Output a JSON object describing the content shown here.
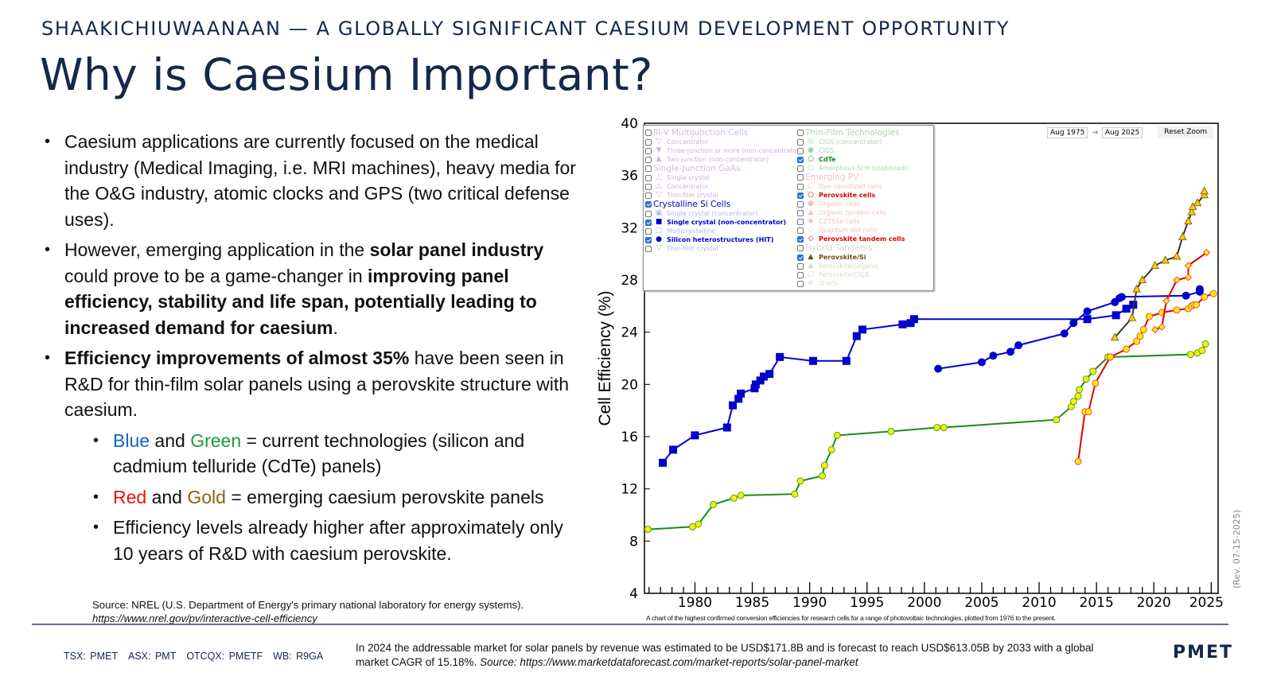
{
  "header": {
    "kicker": "SHAAKICHIUWAANAAN — A GLOBALLY SIGNIFICANT CAESIUM DEVELOPMENT OPPORTUNITY",
    "title": "Why is Caesium Important?"
  },
  "bullets": {
    "b1": "Caesium applications are currently focused on the medical industry (Medical Imaging, i.e. MRI machines), heavy media for the O&G industry, atomic clocks and GPS (two critical defense uses).",
    "b2_a": "However, emerging application in the ",
    "b2_b": "solar panel industry",
    "b2_c": " could prove to be a game-changer in ",
    "b2_d": "improving panel efficiency, stability and life span, potentially leading to increased demand for caesium",
    "b2_e": ".",
    "b3_a": "Efficiency improvements of almost 35%",
    "b3_b": " have been seen in R&D for thin-film solar panels using a perovskite structure with caesium.",
    "s1_blue": "Blue",
    "s1_and": " and ",
    "s1_green": "Green",
    "s1_rest": " = current technologies (silicon and cadmium telluride (CdTe) panels)",
    "s2_red": "Red",
    "s2_and": " and ",
    "s2_gold": "Gold",
    "s2_rest": " = emerging caesium perovskite panels",
    "s3": "Efficiency levels already higher after approximately only 10 years of R&D with caesium perovskite."
  },
  "source": {
    "text": "Source: NREL (U.S. Department of Energy's primary national laboratory for energy systems).",
    "url": "https://www.nrel.gov/pv/interactive-cell-efficiency"
  },
  "footer": {
    "tickers": [
      "TSX: PMET",
      "ASX: PMT",
      "OTCQX: PMETF",
      "WB: R9GA"
    ],
    "market_text": "In 2024 the addressable market for solar panels by revenue was estimated to be  USD$171.8B and is forecast to reach USD$613.05B by 2033 with a global market CAGR of 15.18%. ",
    "market_source_label": "Source:  https://www.marketdataforecast.com/market-reports/solar-panel-market",
    "logo": "PMET"
  },
  "colors": {
    "navy": "#14284b",
    "crystalline_si": "#0000cc",
    "cdte_line": "#1a8a1a",
    "perovskite_line": "#dd0000",
    "perovskite_si_line": "#333333",
    "marker_fill": "#ffee00"
  },
  "chart_controls": {
    "date_from": "Aug 1975",
    "arrow": "→",
    "date_to": "Aug 2025",
    "reset_zoom": "Reset Zoom",
    "caption": "A chart of the highest confirmed conversion efficiencies for research cells for a range of photovoltaic technologies, plotted from 1976 to the present.",
    "revision": "(Rev. 07-15-2025)"
  },
  "legend": {
    "left": [
      {
        "label": "III-V Multijunction Cells",
        "header": true,
        "checked": false,
        "color": "#d8b8e0",
        "sym": ""
      },
      {
        "label": "Concentrator",
        "checked": false,
        "color": "#d0b0e0",
        "sym": "▽"
      },
      {
        "label": "Three-junction or more (non-concentrator)",
        "checked": false,
        "color": "#d0b0e0",
        "sym": "▼"
      },
      {
        "label": "Two-junction (non-concentrator)",
        "checked": false,
        "color": "#d0b0e0",
        "sym": "▲"
      },
      {
        "label": "Single-Junction GaAs",
        "header": true,
        "checked": false,
        "color": "#d8b8e0",
        "sym": ""
      },
      {
        "label": "Single crystal",
        "checked": false,
        "color": "#d0b0e0",
        "sym": "△"
      },
      {
        "label": "Concentrator",
        "checked": false,
        "color": "#d0b0e0",
        "sym": "△"
      },
      {
        "label": "Thin-film crystal",
        "checked": false,
        "color": "#d0b0e0",
        "sym": "▽"
      },
      {
        "label": "Crystalline Si Cells",
        "header": true,
        "checked": true,
        "color": "#0000cc",
        "sym": ""
      },
      {
        "label": "Single crystal (concentrator)",
        "checked": false,
        "color": "#b0b8ee",
        "sym": "▣"
      },
      {
        "label": "Single crystal (non-concentrator)",
        "checked": true,
        "color": "#0000cc",
        "sym": "■"
      },
      {
        "label": "Multicrystalline",
        "checked": false,
        "color": "#b0b8ee",
        "sym": "□"
      },
      {
        "label": "Silicon heterostructures (HIT)",
        "checked": true,
        "color": "#0000cc",
        "sym": "●"
      },
      {
        "label": "Thin-film crystal",
        "checked": false,
        "color": "#b0b8ee",
        "sym": "▽"
      }
    ],
    "right": [
      {
        "label": "Thin-Film Technologies",
        "header": true,
        "checked": false,
        "color": "#a8d8a8",
        "sym": ""
      },
      {
        "label": "CIGS (concentrator)",
        "checked": false,
        "color": "#a8d8a8",
        "sym": "◎"
      },
      {
        "label": "CIGS",
        "checked": false,
        "color": "#a8d8a8",
        "sym": "●"
      },
      {
        "label": "CdTe",
        "checked": true,
        "color": "#1a8a1a",
        "sym": "○"
      },
      {
        "label": "Amorphous Si:H (stabilized)",
        "checked": false,
        "color": "#a8d8a8",
        "sym": "○"
      },
      {
        "label": "Emerging PV",
        "header": true,
        "checked": false,
        "color": "#f5c0b8",
        "sym": ""
      },
      {
        "label": "Dye-sensitized cells",
        "checked": false,
        "color": "#f5c0b8",
        "sym": "○"
      },
      {
        "label": "Perovskite cells",
        "checked": true,
        "color": "#dd0000",
        "sym": "○"
      },
      {
        "label": "Organic cells",
        "checked": false,
        "color": "#f5c0b8",
        "sym": "●"
      },
      {
        "label": "Organic tandem cells",
        "checked": false,
        "color": "#f5c0b8",
        "sym": "▲"
      },
      {
        "label": "CZTSSe cells",
        "checked": false,
        "color": "#f5c0b8",
        "sym": "◆"
      },
      {
        "label": "Quantum dot cells",
        "checked": false,
        "color": "#f5c0b8",
        "sym": "◇"
      },
      {
        "label": "Perovskite tandem cells",
        "checked": true,
        "color": "#dd0000",
        "sym": "◇"
      },
      {
        "label": "Hybrid Tandems",
        "header": true,
        "checked": false,
        "color": "#ddd8c8",
        "sym": ""
      },
      {
        "label": "Perovskite/Si",
        "checked": true,
        "color": "#6b4a10",
        "sym": "▲"
      },
      {
        "label": "Perovskite/Organic",
        "checked": false,
        "color": "#ddd8c8",
        "sym": "▲"
      },
      {
        "label": "Perovskite/CIGS",
        "checked": false,
        "color": "#ddd8c8",
        "sym": "□"
      },
      {
        "label": "III-V/Si",
        "checked": false,
        "color": "#ddd8c8",
        "sym": "≡"
      }
    ]
  },
  "chart_data": {
    "type": "line",
    "title": "",
    "xlabel": "",
    "ylabel": "Cell Efficiency (%)",
    "xlim": [
      1975.6,
      2025.6
    ],
    "ylim": [
      4,
      40
    ],
    "xticks": [
      1980,
      1985,
      1990,
      1995,
      2000,
      2005,
      2010,
      2015,
      2020,
      2025
    ],
    "yticks": [
      4,
      8,
      12,
      16,
      20,
      24,
      28,
      32,
      36,
      40
    ],
    "grid": false,
    "legend_position": "top-left",
    "series": [
      {
        "name": "Single crystal (non-concentrator)",
        "line": "#0000cc",
        "marker": "square",
        "fill": "#0000cc",
        "stroke": "#0000cc",
        "x": [
          1977.2,
          1978.1,
          1980.0,
          1982.8,
          1983.3,
          1983.8,
          1984.0,
          1985.2,
          1985.3,
          1985.7,
          1986.0,
          1986.5,
          1987.4,
          1990.3,
          1993.2,
          1994.1,
          1994.6,
          1998.1,
          1998.8,
          1999.1,
          2014.2,
          2016.7,
          2017.6,
          2018.2
        ],
        "y": [
          14.0,
          15.0,
          16.1,
          16.7,
          18.4,
          18.9,
          19.3,
          19.7,
          20.0,
          20.3,
          20.6,
          20.8,
          22.1,
          21.8,
          21.8,
          23.7,
          24.2,
          24.6,
          24.7,
          25.0,
          25.0,
          25.3,
          25.8,
          26.1
        ]
      },
      {
        "name": "Silicon heterostructures (HIT)",
        "line": "#0000cc",
        "marker": "circle",
        "fill": "#0000cc",
        "stroke": "#0000cc",
        "x": [
          2001.2,
          2005.0,
          2006.0,
          2007.5,
          2008.2,
          2012.2,
          2013.0,
          2014.2,
          2016.6,
          2017.0,
          2017.2,
          2022.8,
          2024.0,
          2024.0
        ],
        "y": [
          21.2,
          21.7,
          22.2,
          22.5,
          23.0,
          23.9,
          24.7,
          25.6,
          26.3,
          26.6,
          26.7,
          26.8,
          27.1,
          27.3
        ]
      },
      {
        "name": "CdTe",
        "line": "#1a8a1a",
        "marker": "circle",
        "fill": "#ffee00",
        "stroke": "#44aa22",
        "x": [
          1975.9,
          1979.8,
          1980.3,
          1981.6,
          1983.4,
          1984.0,
          1988.7,
          1989.2,
          1991.1,
          1991.3,
          1991.9,
          1992.4,
          1997.1,
          2001.1,
          2001.7,
          2011.5,
          2012.8,
          2013.0,
          2013.4,
          2013.5,
          2014.1,
          2014.7,
          2016.0,
          2016.2,
          2023.2,
          2023.8,
          2024.2,
          2024.5
        ],
        "y": [
          8.9,
          9.1,
          9.3,
          10.8,
          11.3,
          11.5,
          11.6,
          12.6,
          13.0,
          13.8,
          15.0,
          16.1,
          16.4,
          16.7,
          16.7,
          17.3,
          18.3,
          18.7,
          19.1,
          19.6,
          20.4,
          21.0,
          22.1,
          22.1,
          22.3,
          22.4,
          22.6,
          23.1
        ]
      },
      {
        "name": "Perovskite cells",
        "line": "#dd0000",
        "marker": "circle",
        "fill": "#ffee00",
        "stroke": "#e85050",
        "x": [
          2013.4,
          2014.0,
          2014.3,
          2014.9,
          2016.2,
          2017.6,
          2018.5,
          2018.8,
          2019.1,
          2019.6,
          2020.7,
          2022.0,
          2023.0,
          2023.3,
          2023.5,
          2023.7,
          2024.4,
          2025.2
        ],
        "y": [
          14.1,
          17.9,
          17.9,
          20.1,
          22.1,
          22.7,
          23.3,
          23.7,
          24.2,
          25.2,
          25.5,
          25.7,
          25.8,
          26.0,
          26.1,
          26.1,
          26.7,
          26.95
        ]
      },
      {
        "name": "Perovskite tandem cells",
        "line": "#dd0000",
        "marker": "diamond",
        "fill": "#ffee00",
        "stroke": "#e85050",
        "x": [
          2020.1,
          2020.7,
          2021.1,
          2022.0,
          2023.0,
          2023.0,
          2024.6
        ],
        "y": [
          24.2,
          24.4,
          26.4,
          28.0,
          28.2,
          29.1,
          30.1
        ]
      },
      {
        "name": "Perovskite/Si",
        "line": "#333333",
        "marker": "triangle",
        "fill": "#ffcc00",
        "stroke": "#8a6414",
        "x": [
          2016.6,
          2018.1,
          2018.5,
          2019.0,
          2020.1,
          2021.0,
          2022.0,
          2022.5,
          2023.0,
          2023.3,
          2023.4,
          2023.8,
          2024.4,
          2024.4
        ],
        "y": [
          23.6,
          25.1,
          27.3,
          28.0,
          29.1,
          29.5,
          29.8,
          31.3,
          32.5,
          33.2,
          33.6,
          33.9,
          34.5,
          34.8
        ]
      }
    ]
  }
}
